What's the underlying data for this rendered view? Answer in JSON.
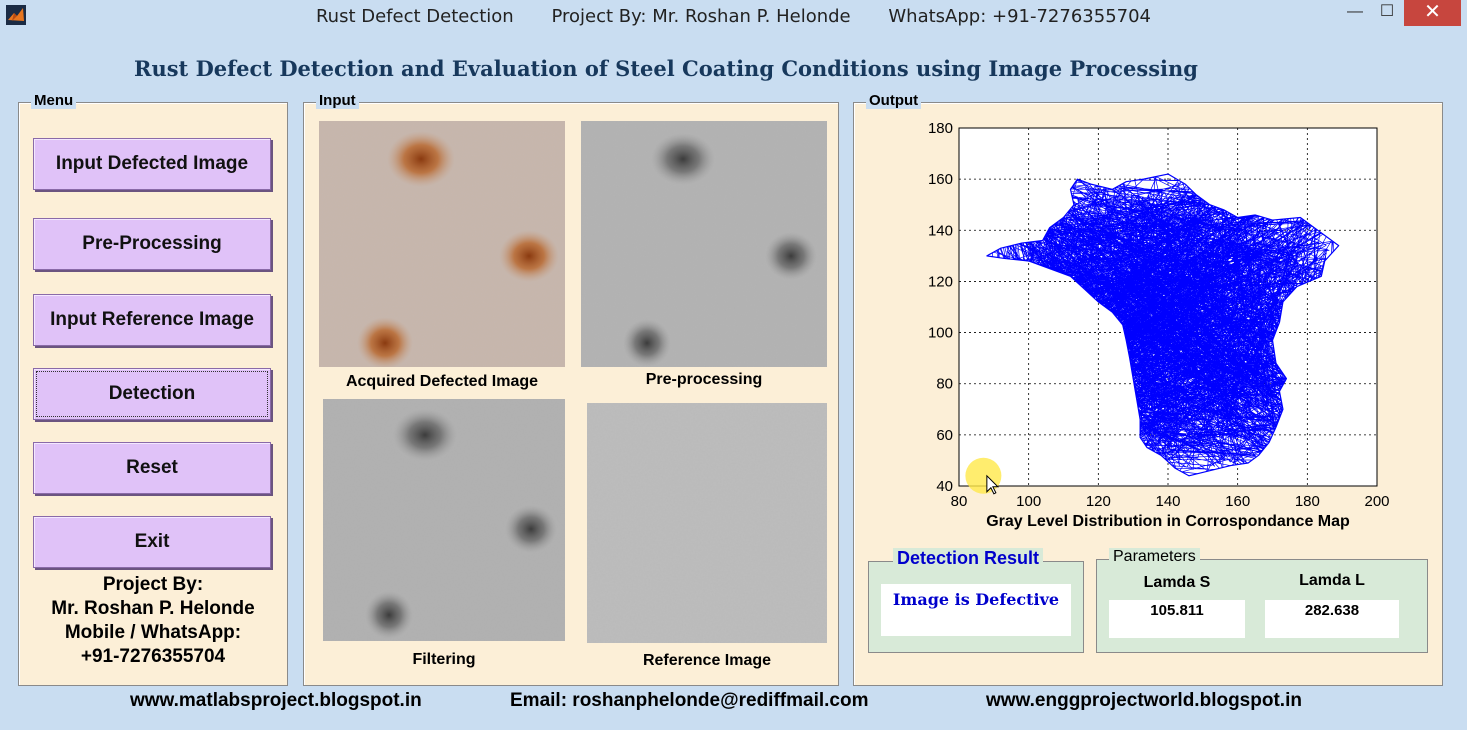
{
  "window": {
    "title_parts": [
      "Rust Defect Detection",
      "Project By: Mr. Roshan P. Helonde",
      "WhatsApp: +91-7276355704"
    ],
    "min_symbol": "—",
    "max_symbol": "☐",
    "close_symbol": "✕"
  },
  "heading": "Rust Defect Detection and Evaluation of Steel Coating Conditions using Image Processing",
  "menu": {
    "label": "Menu",
    "buttons": [
      "Input Defected Image",
      "Pre-Processing",
      "Input Reference Image",
      "Detection",
      "Reset",
      "Exit"
    ],
    "project_info": [
      "Project By:",
      "Mr. Roshan P. Helonde",
      "Mobile / WhatsApp:",
      "+91-7276355704"
    ]
  },
  "input": {
    "label": "Input",
    "captions": [
      "Acquired Defected Image",
      "Pre-processing",
      "Filtering",
      "Reference Image"
    ]
  },
  "output": {
    "label": "Output"
  },
  "chart_data": {
    "type": "line",
    "xlabel": "Gray Level Distribution in Corrospondance Map",
    "ylabel": "",
    "xlim": [
      80,
      200
    ],
    "ylim": [
      40,
      180
    ],
    "xticks": [
      80,
      100,
      120,
      140,
      160,
      180,
      200
    ],
    "yticks": [
      40,
      60,
      80,
      100,
      120,
      140,
      160,
      180
    ],
    "grid": true,
    "grid_style": "dotted",
    "series_color": "#0000ff",
    "outline": [
      [
        114,
        160
      ],
      [
        118,
        158
      ],
      [
        124,
        156
      ],
      [
        128,
        159
      ],
      [
        133,
        160
      ],
      [
        140,
        162
      ],
      [
        145,
        158
      ],
      [
        148,
        154
      ],
      [
        152,
        150
      ],
      [
        156,
        148
      ],
      [
        160,
        145
      ],
      [
        165,
        146
      ],
      [
        170,
        144
      ],
      [
        178,
        145
      ],
      [
        182,
        141
      ],
      [
        189,
        134
      ],
      [
        185,
        128
      ],
      [
        184,
        122
      ],
      [
        177,
        118
      ],
      [
        173,
        112
      ],
      [
        172,
        104
      ],
      [
        170,
        97
      ],
      [
        171,
        88
      ],
      [
        174,
        82
      ],
      [
        172,
        77
      ],
      [
        173,
        70
      ],
      [
        171,
        63
      ],
      [
        169,
        57
      ],
      [
        166,
        52
      ],
      [
        163,
        49
      ],
      [
        158,
        48
      ],
      [
        152,
        46
      ],
      [
        146,
        44
      ],
      [
        142,
        47
      ],
      [
        138,
        52
      ],
      [
        134,
        55
      ],
      [
        132,
        59
      ],
      [
        132,
        66
      ],
      [
        131,
        74
      ],
      [
        130,
        82
      ],
      [
        129,
        90
      ],
      [
        128,
        97
      ],
      [
        127,
        103
      ],
      [
        124,
        108
      ],
      [
        120,
        112
      ],
      [
        116,
        117
      ],
      [
        112,
        122
      ],
      [
        108,
        124
      ],
      [
        104,
        126
      ],
      [
        100,
        128
      ],
      [
        93,
        129
      ],
      [
        88,
        130
      ],
      [
        92,
        133
      ],
      [
        98,
        135
      ],
      [
        104,
        136
      ],
      [
        106,
        141
      ],
      [
        110,
        145
      ],
      [
        113,
        150
      ],
      [
        112,
        156
      ]
    ]
  },
  "detection": {
    "label": "Detection Result",
    "value": "Image is Defective",
    "label_color": "#0000cc"
  },
  "parameters": {
    "label": "Parameters",
    "lamda_s_label": "Lamda S",
    "lamda_s_value": "105.811",
    "lamda_l_label": "Lamda L",
    "lamda_l_value": "282.638"
  },
  "footer": {
    "site1": "www.matlabsproject.blogspot.in",
    "email": "Email:  roshanphelonde@rediffmail.com",
    "site2": "www.enggprojectworld.blogspot.in"
  }
}
